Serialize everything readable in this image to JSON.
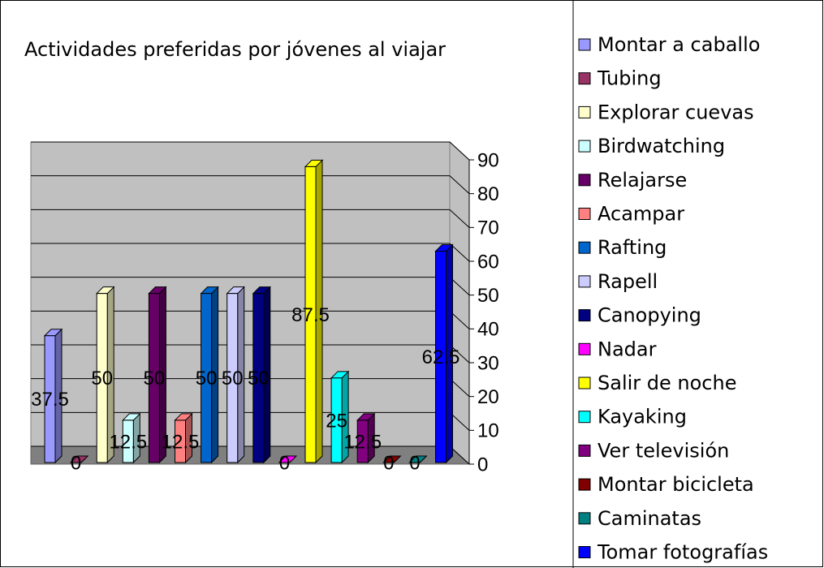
{
  "chart_data": {
    "type": "bar3d",
    "title": "Actividades preferidas por jóvenes al viajar",
    "series": [
      {
        "name": "Montar a caballo",
        "color": "#9999ff",
        "values": [
          37.5
        ]
      },
      {
        "name": "Tubing",
        "color": "#993366",
        "values": [
          0
        ]
      },
      {
        "name": "Explorar cuevas",
        "color": "#ffffcc",
        "values": [
          50
        ]
      },
      {
        "name": "Birdwatching",
        "color": "#ccffff",
        "values": [
          12.5
        ]
      },
      {
        "name": "Relajarse",
        "color": "#660066",
        "values": [
          50
        ]
      },
      {
        "name": "Acampar",
        "color": "#ff8080",
        "values": [
          12.5
        ]
      },
      {
        "name": "Rafting",
        "color": "#0066cc",
        "values": [
          50
        ]
      },
      {
        "name": "Rapell",
        "color": "#ccccff",
        "values": [
          50
        ]
      },
      {
        "name": "Canopying",
        "color": "#000080",
        "values": [
          50
        ]
      },
      {
        "name": "Nadar",
        "color": "#ff00ff",
        "values": [
          0
        ]
      },
      {
        "name": "Salir de noche",
        "color": "#ffff00",
        "values": [
          87.5
        ]
      },
      {
        "name": "Kayaking",
        "color": "#00ffff",
        "values": [
          25
        ]
      },
      {
        "name": "Ver televisión",
        "color": "#800080",
        "values": [
          12.5
        ]
      },
      {
        "name": "Montar bicicleta",
        "color": "#800000",
        "values": [
          0
        ]
      },
      {
        "name": "Caminatas",
        "color": "#008080",
        "values": [
          0
        ]
      },
      {
        "name": "Tomar fotografías",
        "color": "#0000ff",
        "values": [
          62.5
        ]
      }
    ],
    "ylim": [
      0,
      90
    ],
    "yticks": [
      0,
      10,
      20,
      30,
      40,
      50,
      60,
      70,
      80,
      90
    ],
    "grid": true,
    "legend": "right"
  }
}
